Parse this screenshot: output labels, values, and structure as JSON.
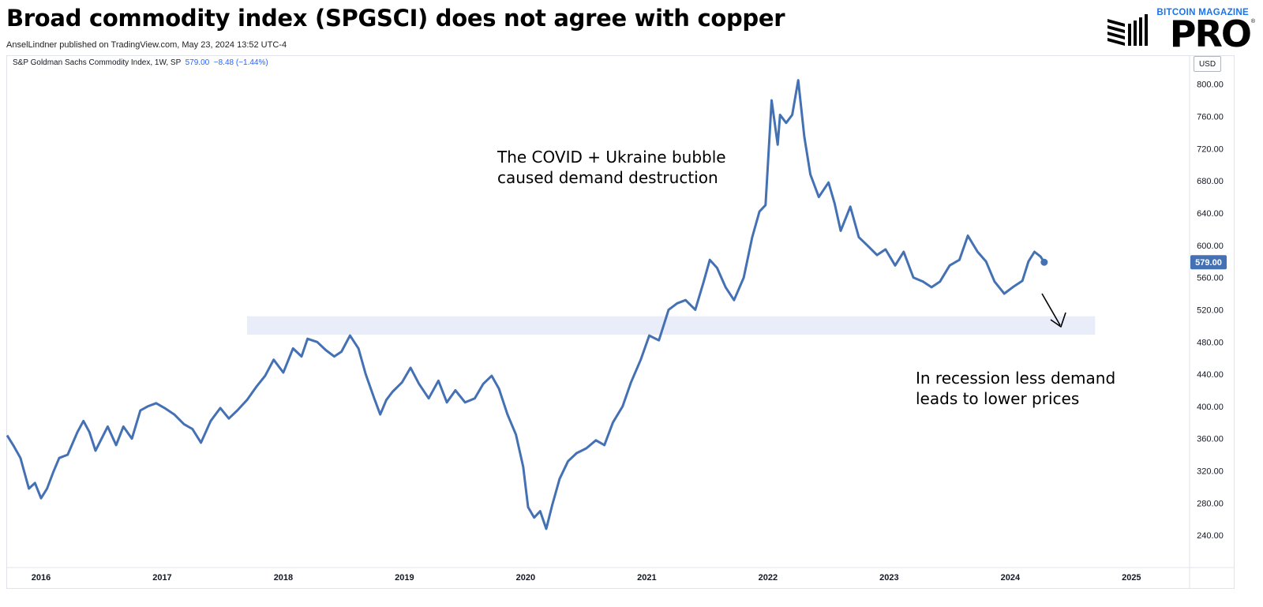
{
  "header": {
    "title": "Broad commodity index (SPGSCI) does not agree with copper",
    "published": "AnselLindner published on TradingView.com, May 23, 2024 13:52 UTC-4"
  },
  "logo": {
    "tagline": "BITCOIN MAGAZINE",
    "wordmark": "PRO",
    "registered": "®"
  },
  "legend": {
    "symbol": "S&P Goldman Sachs Commodity Index, 1W, SP",
    "last": "579.00",
    "change": "−8.48 (−1.44%)"
  },
  "currency_button": "USD",
  "annotations": {
    "covid": "The COVID + Ukraine bubble\ncaused demand destruction",
    "recession": "In recession less demand\nleads to lower prices"
  },
  "colors": {
    "line": "#4470b4",
    "support_band": "#e8edf9",
    "price_tag": "#4470b4"
  },
  "chart_data": {
    "type": "line",
    "title": "S&P Goldman Sachs Commodity Index, 1W, SP",
    "xlabel": "",
    "ylabel": "USD",
    "x_ticks": [
      "2016",
      "2017",
      "2018",
      "2019",
      "2020",
      "2021",
      "2022",
      "2023",
      "2024",
      "2025"
    ],
    "y_ticks": [
      240,
      280,
      320,
      360,
      400,
      440,
      480,
      520,
      560,
      600,
      640,
      680,
      720,
      760,
      800
    ],
    "ylim": [
      200,
      835
    ],
    "xlim": [
      2015.82,
      2025.58
    ],
    "grid": false,
    "last_price": 579.0,
    "support_zone": {
      "x_from": 2017.8,
      "x_to": 2024.8,
      "y_from": 489,
      "y_to": 512
    },
    "series": [
      {
        "x": [
          2015.82,
          2015.87,
          2015.93,
          2016.0,
          2016.05,
          2016.1,
          2016.15,
          2016.2,
          2016.25,
          2016.32,
          2016.4,
          2016.45,
          2016.5,
          2016.55,
          2016.6,
          2016.65,
          2016.72,
          2016.78,
          2016.85,
          2016.92,
          2016.98,
          2017.05,
          2017.12,
          2017.2,
          2017.28,
          2017.35,
          2017.42,
          2017.5,
          2017.58,
          2017.65,
          2017.72,
          2017.8,
          2017.88,
          2017.95,
          2018.02,
          2018.1,
          2018.18,
          2018.25,
          2018.3,
          2018.38,
          2018.45,
          2018.52,
          2018.58,
          2018.65,
          2018.72,
          2018.78,
          2018.85,
          2018.9,
          2018.95,
          2019.0,
          2019.08,
          2019.15,
          2019.22,
          2019.3,
          2019.38,
          2019.45,
          2019.52,
          2019.6,
          2019.68,
          2019.75,
          2019.82,
          2019.88,
          2019.95,
          2020.02,
          2020.08,
          2020.12,
          2020.17,
          2020.22,
          2020.27,
          2020.32,
          2020.38,
          2020.45,
          2020.52,
          2020.6,
          2020.68,
          2020.75,
          2020.82,
          2020.9,
          2020.97,
          2021.05,
          2021.12,
          2021.2,
          2021.28,
          2021.35,
          2021.42,
          2021.5,
          2021.57,
          2021.62,
          2021.68,
          2021.75,
          2021.82,
          2021.9,
          2021.97,
          2022.03,
          2022.08,
          2022.13,
          2022.18,
          2022.2,
          2022.25,
          2022.3,
          2022.35,
          2022.4,
          2022.45,
          2022.52,
          2022.6,
          2022.65,
          2022.7,
          2022.78,
          2022.85,
          2022.92,
          2023.0,
          2023.07,
          2023.15,
          2023.22,
          2023.3,
          2023.38,
          2023.45,
          2023.52,
          2023.6,
          2023.68,
          2023.75,
          2023.83,
          2023.9,
          2023.97,
          2024.05,
          2024.12,
          2024.2,
          2024.25,
          2024.3,
          2024.35,
          2024.38
        ],
        "values": [
          364,
          352,
          336,
          298,
          305,
          286,
          298,
          318,
          336,
          340,
          368,
          382,
          368,
          345,
          360,
          375,
          352,
          375,
          360,
          395,
          400,
          404,
          398,
          390,
          378,
          372,
          355,
          382,
          398,
          385,
          395,
          408,
          425,
          438,
          458,
          442,
          472,
          462,
          484,
          480,
          470,
          462,
          468,
          488,
          472,
          440,
          410,
          390,
          408,
          418,
          430,
          448,
          428,
          410,
          432,
          405,
          420,
          405,
          410,
          428,
          438,
          422,
          390,
          365,
          325,
          275,
          262,
          270,
          248,
          278,
          310,
          332,
          342,
          348,
          358,
          352,
          380,
          400,
          430,
          458,
          488,
          482,
          520,
          528,
          532,
          520,
          555,
          582,
          572,
          548,
          532,
          560,
          610,
          642,
          650,
          780,
          725,
          762,
          752,
          762,
          805,
          735,
          688,
          660,
          678,
          652,
          618,
          648,
          610,
          600,
          588,
          595,
          575,
          592,
          560,
          555,
          548,
          555,
          575,
          582,
          612,
          592,
          580,
          555,
          540,
          548,
          556,
          580,
          592,
          586,
          579
        ]
      }
    ]
  }
}
